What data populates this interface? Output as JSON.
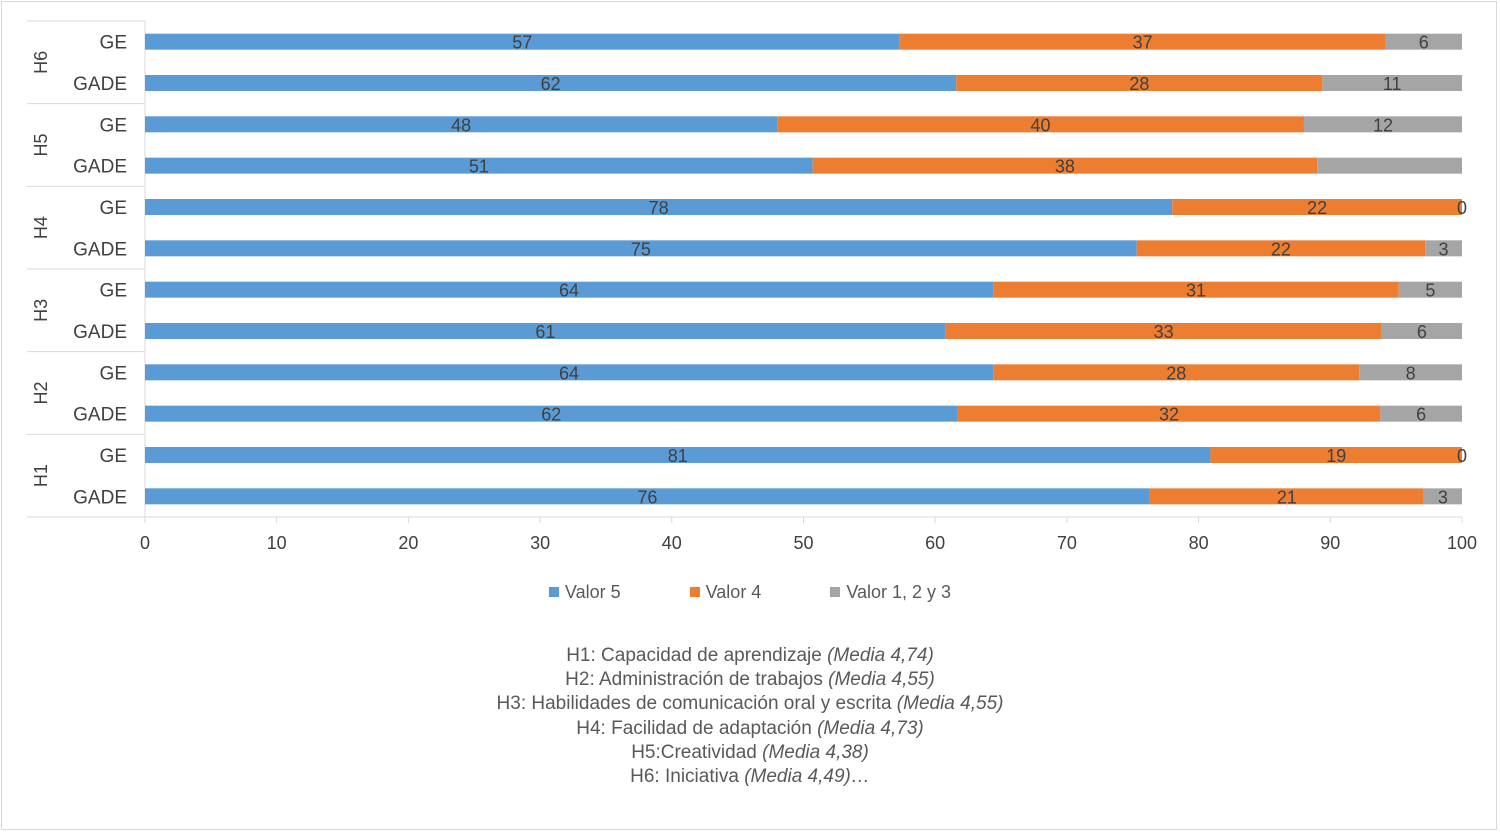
{
  "chart_data": {
    "type": "bar",
    "orientation": "horizontal",
    "stacked": true,
    "groups": [
      "H6",
      "H5",
      "H4",
      "H3",
      "H2",
      "H1"
    ],
    "categories": [
      "GE",
      "GADE",
      "GE",
      "GADE",
      "GE",
      "GADE",
      "GE",
      "GADE",
      "GE",
      "GADE",
      "GE",
      "GADE"
    ],
    "series": [
      {
        "name": "Valor 5",
        "values": [
          57.3,
          61.6,
          48,
          50.7,
          78,
          75.3,
          64.4,
          60.8,
          64.4,
          61.7,
          80.9,
          76.3
        ],
        "labels": [
          "57",
          "62",
          "48",
          "51",
          "78",
          "75",
          "64",
          "61",
          "64",
          "62",
          "81",
          "76"
        ]
      },
      {
        "name": "Valor 4",
        "values": [
          36.9,
          27.8,
          40,
          38.3,
          22,
          21.9,
          30.8,
          33.1,
          27.8,
          32.1,
          19.1,
          20.8
        ],
        "labels": [
          "37",
          "28",
          "40",
          "38",
          "22",
          "22",
          "31",
          "33",
          "28",
          "32",
          "19",
          "21"
        ]
      },
      {
        "name": "Valor 1, 2 y 3",
        "values": [
          5.8,
          10.6,
          12,
          11,
          0,
          2.8,
          4.8,
          6.1,
          7.8,
          6.2,
          0,
          2.9
        ],
        "labels": [
          "6",
          "11",
          "12",
          "",
          "0",
          "3",
          "5",
          "6",
          "8",
          "6",
          "0",
          "3"
        ]
      }
    ],
    "xlim": [
      0,
      100
    ],
    "xticks": [
      "0",
      "10",
      "20",
      "30",
      "40",
      "50",
      "60",
      "70",
      "80",
      "90",
      "100"
    ],
    "legend_position": "bottom",
    "colors": [
      "#5b9bd5",
      "#ed7d31",
      "#a5a5a5"
    ]
  },
  "notes": [
    {
      "text": "H1: Capacidad de aprendizaje ",
      "mean": "(Media 4,74)"
    },
    {
      "text": "H2:  Administración de trabajos ",
      "mean": "(Media 4,55)"
    },
    {
      "text": "H3: Habilidades de comunicación oral y escrita ",
      "mean": "(Media 4,55)"
    },
    {
      "text": "H4: Facilidad de adaptación ",
      "mean": "(Media 4,73)"
    },
    {
      "text": "H5:Creatividad  ",
      "mean": "(Media 4,38)"
    },
    {
      "text": "H6: Iniciativa ",
      "mean": "(Media 4,49)…"
    }
  ]
}
